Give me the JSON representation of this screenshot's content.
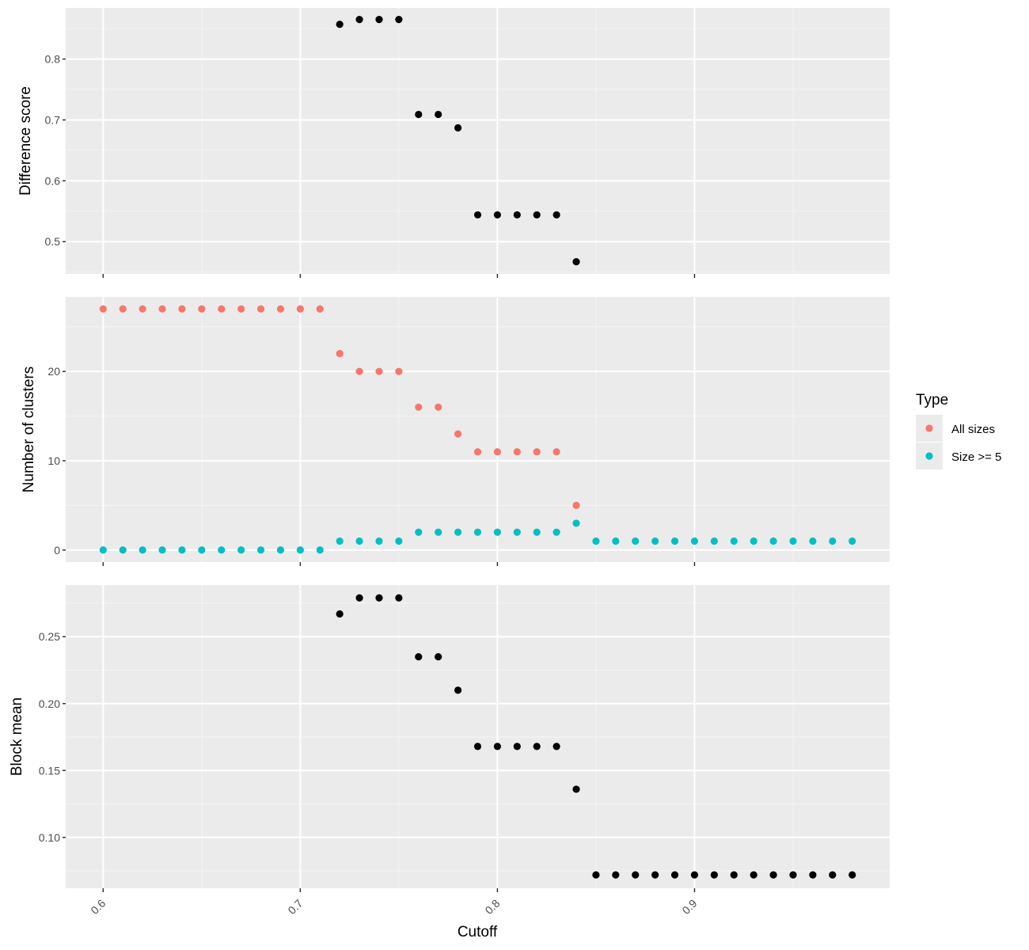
{
  "colors": {
    "panel_bg": "#EBEBEB",
    "grid_major": "#FFFFFF",
    "grid_minor": "#F4F4F4",
    "tick": "#333333",
    "point_default": "#000000",
    "all_sizes": "#F8766D",
    "size_ge_5": "#00BFC4"
  },
  "legend": {
    "title": "Type",
    "items": [
      {
        "label": "All sizes",
        "color": "#F8766D"
      },
      {
        "label": "Size >= 5",
        "color": "#00BFC4"
      }
    ]
  },
  "chart_data": [
    {
      "type": "scatter",
      "ylabel": "Difference score",
      "xlabel": "",
      "xlim": [
        0.581,
        0.999
      ],
      "ylim": [
        0.447,
        0.884
      ],
      "y_ticks": [
        0.5,
        0.6,
        0.7,
        0.8
      ],
      "y_tick_labels": [
        "0.5",
        "0.6",
        "0.7",
        "0.8"
      ],
      "x_ticks": [
        0.6,
        0.7,
        0.8,
        0.9
      ],
      "x_tick_labels": [],
      "grid": true,
      "series": [
        {
          "color": "#000000",
          "x": [
            0.72,
            0.73,
            0.74,
            0.75,
            0.76,
            0.77,
            0.78,
            0.79,
            0.8,
            0.81,
            0.82,
            0.83,
            0.84
          ],
          "y": [
            0.857,
            0.865,
            0.865,
            0.865,
            0.709,
            0.709,
            0.687,
            0.544,
            0.544,
            0.544,
            0.544,
            0.544,
            0.467
          ]
        }
      ]
    },
    {
      "type": "scatter",
      "ylabel": "Number of clusters",
      "xlabel": "",
      "xlim": [
        0.581,
        0.999
      ],
      "ylim": [
        -1.35,
        28.35
      ],
      "y_ticks": [
        0,
        10,
        20
      ],
      "y_tick_labels": [
        "0",
        "10",
        "20"
      ],
      "x_ticks": [
        0.6,
        0.7,
        0.8,
        0.9
      ],
      "x_tick_labels": [],
      "grid": true,
      "series": [
        {
          "name": "All sizes",
          "color": "#F8766D",
          "x": [
            0.6,
            0.61,
            0.62,
            0.63,
            0.64,
            0.65,
            0.66,
            0.67,
            0.68,
            0.69,
            0.7,
            0.71,
            0.72,
            0.73,
            0.74,
            0.75,
            0.76,
            0.77,
            0.78,
            0.79,
            0.8,
            0.81,
            0.82,
            0.83,
            0.84
          ],
          "y": [
            27,
            27,
            27,
            27,
            27,
            27,
            27,
            27,
            27,
            27,
            27,
            27,
            22,
            20,
            20,
            20,
            16,
            16,
            13,
            11,
            11,
            11,
            11,
            11,
            5
          ]
        },
        {
          "name": "Size >= 5",
          "color": "#00BFC4",
          "x": [
            0.6,
            0.61,
            0.62,
            0.63,
            0.64,
            0.65,
            0.66,
            0.67,
            0.68,
            0.69,
            0.7,
            0.71,
            0.72,
            0.73,
            0.74,
            0.75,
            0.76,
            0.77,
            0.78,
            0.79,
            0.8,
            0.81,
            0.82,
            0.83,
            0.84,
            0.85,
            0.86,
            0.87,
            0.88,
            0.89,
            0.9,
            0.91,
            0.92,
            0.93,
            0.94,
            0.95,
            0.96,
            0.97,
            0.98
          ],
          "y": [
            0,
            0,
            0,
            0,
            0,
            0,
            0,
            0,
            0,
            0,
            0,
            0,
            1,
            1,
            1,
            1,
            2,
            2,
            2,
            2,
            2,
            2,
            2,
            2,
            3,
            1,
            1,
            1,
            1,
            1,
            1,
            1,
            1,
            1,
            1,
            1,
            1,
            1,
            1
          ]
        }
      ]
    },
    {
      "type": "scatter",
      "ylabel": "Block mean",
      "xlabel": "Cutoff",
      "xlim": [
        0.581,
        0.999
      ],
      "ylim": [
        0.062,
        0.2886
      ],
      "y_ticks": [
        0.1,
        0.15,
        0.2,
        0.25
      ],
      "y_tick_labels": [
        "0.10",
        "0.15",
        "0.20",
        "0.25"
      ],
      "x_ticks": [
        0.6,
        0.7,
        0.8,
        0.9
      ],
      "x_tick_labels": [
        "0.6",
        "0.7",
        "0.8",
        "0.9"
      ],
      "grid": true,
      "series": [
        {
          "color": "#000000",
          "x": [
            0.72,
            0.73,
            0.74,
            0.75,
            0.76,
            0.77,
            0.78,
            0.79,
            0.8,
            0.81,
            0.82,
            0.83,
            0.84,
            0.85,
            0.86,
            0.87,
            0.88,
            0.89,
            0.9,
            0.91,
            0.92,
            0.93,
            0.94,
            0.95,
            0.96,
            0.97,
            0.98
          ],
          "y": [
            0.267,
            0.279,
            0.279,
            0.279,
            0.235,
            0.235,
            0.21,
            0.168,
            0.168,
            0.168,
            0.168,
            0.168,
            0.136,
            0.072,
            0.072,
            0.072,
            0.072,
            0.072,
            0.072,
            0.072,
            0.072,
            0.072,
            0.072,
            0.072,
            0.072,
            0.072,
            0.072
          ]
        }
      ]
    }
  ]
}
